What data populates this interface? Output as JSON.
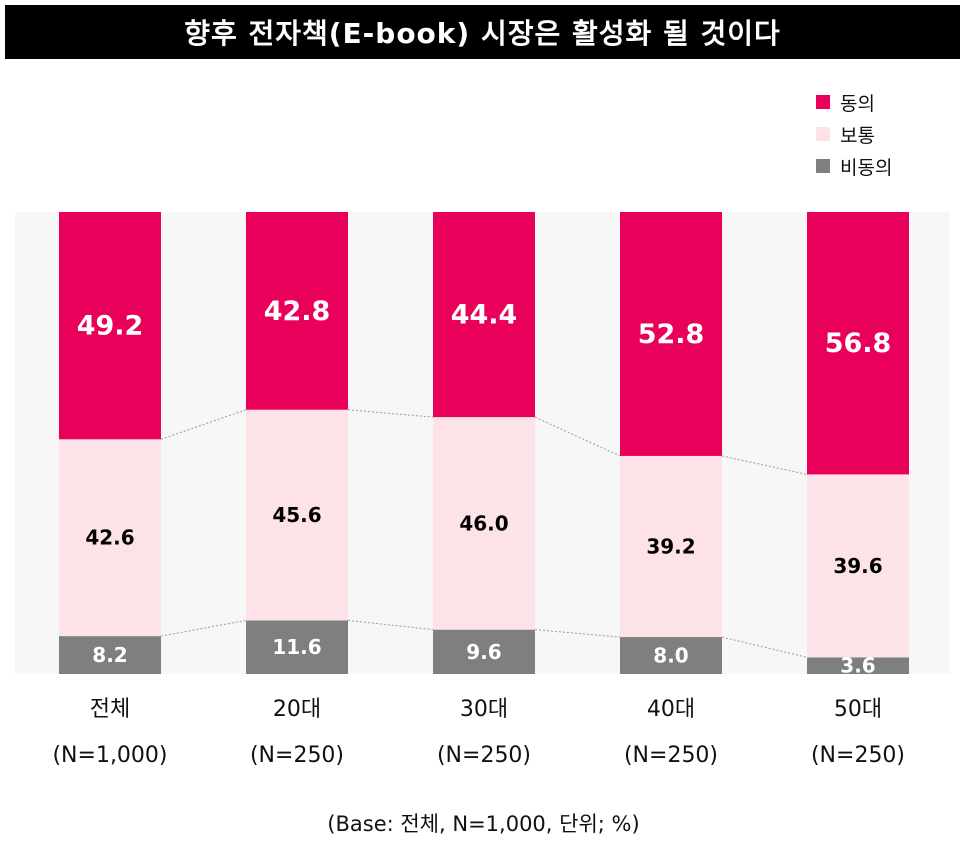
{
  "title": "향후 전자책(E-book) 시장은 활성화 될 것이다",
  "legend": [
    {
      "label": "동의",
      "color": "#E8005A"
    },
    {
      "label": "보통",
      "color": "#FDE3E8"
    },
    {
      "label": "비동의",
      "color": "#7F7F7F"
    }
  ],
  "footnote": "(Base: 전체, N=1,000, 단위; %)",
  "chart_data": {
    "type": "bar",
    "stacked": true,
    "percent": true,
    "categories": [
      {
        "label": "전체",
        "sub": "(N=1,000)"
      },
      {
        "label": "20대",
        "sub": "(N=250)"
      },
      {
        "label": "30대",
        "sub": "(N=250)"
      },
      {
        "label": "40대",
        "sub": "(N=250)"
      },
      {
        "label": "50대",
        "sub": "(N=250)"
      }
    ],
    "series": [
      {
        "name": "비동의",
        "values": [
          8.2,
          11.6,
          9.6,
          8.0,
          3.6
        ],
        "labels": [
          "8.2",
          "11.6",
          "9.6",
          "8.0",
          "3.6"
        ],
        "color": "#7F7F7F",
        "label_color": "#ffffff"
      },
      {
        "name": "보통",
        "values": [
          42.6,
          45.6,
          46.0,
          39.2,
          39.6
        ],
        "labels": [
          "42.6",
          "45.6",
          "46.0",
          "39.2",
          "39.6"
        ],
        "color": "#FDE3E8",
        "label_color": "#000000"
      },
      {
        "name": "동의",
        "values": [
          49.2,
          42.8,
          44.4,
          52.8,
          56.8
        ],
        "labels": [
          "49.2",
          "42.8",
          "44.4",
          "52.8",
          "56.8"
        ],
        "color": "#E8005A",
        "label_color": "#ffffff"
      }
    ],
    "ylim": [
      0,
      100
    ],
    "background_band": "#F7F7F7",
    "connector_lines": true
  }
}
